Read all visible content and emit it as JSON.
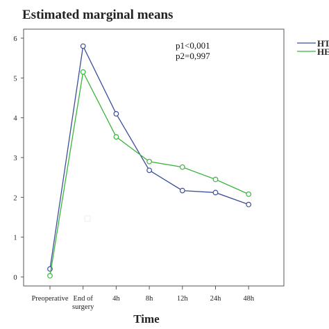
{
  "chart_data": {
    "type": "line",
    "title": "Estimated marginal means",
    "xlabel": "Time",
    "ylabel": "",
    "ylim": [
      0,
      6
    ],
    "yticks": [
      0,
      1,
      2,
      3,
      4,
      5,
      6
    ],
    "categories": [
      "Preoperative",
      "End of surgery",
      "4h",
      "8h",
      "12h",
      "24h",
      "48h"
    ],
    "category_lines": [
      [
        "Preoperative"
      ],
      [
        "End of",
        "surgery"
      ],
      [
        "4h"
      ],
      [
        "8h"
      ],
      [
        "12h"
      ],
      [
        "24h"
      ],
      [
        "48h"
      ]
    ],
    "series": [
      {
        "name": "HT",
        "color": "#3b4f99",
        "values": [
          0.2,
          5.8,
          4.1,
          2.68,
          2.17,
          2.12,
          1.82
        ]
      },
      {
        "name": "HE",
        "color": "#3ab53a",
        "values": [
          0.03,
          5.15,
          3.52,
          2.9,
          2.76,
          2.45,
          2.08
        ]
      }
    ],
    "annotations": [
      "p1<0,001",
      "p2=0,997"
    ],
    "legend_position": "right",
    "grid": false
  }
}
